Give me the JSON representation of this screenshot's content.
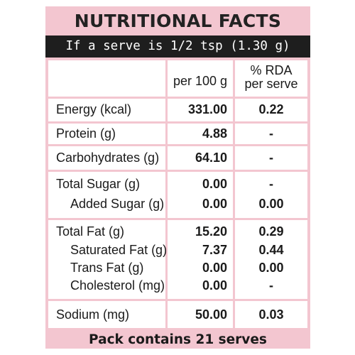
{
  "title": "NUTRITIONAL FACTS",
  "serve_line": "If a serve is 1/2 tsp (1.30 g)",
  "headers": {
    "per_100g": "per 100 g",
    "rda_line1": "% RDA",
    "rda_line2": "per serve"
  },
  "rows": [
    {
      "name": "Energy (kcal)",
      "per100": "331.00",
      "rda": "0.22"
    },
    {
      "name": "Protein (g)",
      "per100": "4.88",
      "rda": "-"
    },
    {
      "name": "Carbohydrates (g)",
      "per100": "64.10",
      "rda": "-"
    },
    {
      "name": "Total Sugar (g)",
      "per100": "0.00",
      "rda": "-"
    },
    {
      "name": "Added Sugar (g)",
      "per100": "0.00",
      "rda": "0.00"
    },
    {
      "name": "Total Fat (g)",
      "per100": "15.20",
      "rda": "0.29"
    },
    {
      "name": "Saturated Fat (g)",
      "per100": "7.37",
      "rda": "0.44"
    },
    {
      "name": "Trans Fat (g)",
      "per100": "0.00",
      "rda": "0.00"
    },
    {
      "name": "Cholesterol (mg)",
      "per100": "0.00",
      "rda": "-"
    },
    {
      "name": "Sodium (mg)",
      "per100": "50.00",
      "rda": "0.03"
    }
  ],
  "footer": "Pack contains 21 serves",
  "colors": {
    "background": "#f3c6d0",
    "bar": "#1e1e1e",
    "cell": "#ffffff"
  }
}
